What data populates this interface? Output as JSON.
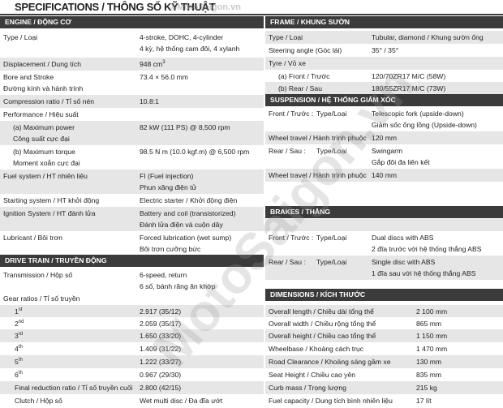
{
  "title": "SPECIFICATIONS / THÔNG SỐ KỸ THUẬT",
  "watermark_top": "©MotoSaigon.vn",
  "watermark": "MotoSaigon.vn",
  "sections": [
    {
      "header": "ENGINE / ĐỘNG CƠ",
      "rows": [
        {
          "label": [
            "Type / Loại"
          ],
          "value": [
            "4-stroke, DOHC, 4-cylinder",
            "4 kỳ, hệ thống cam đôi, 4 xylanh"
          ]
        },
        {
          "label": [
            "Displacement / Dung tích"
          ],
          "value": [
            "948 cm"
          ],
          "value_sup": "3"
        },
        {
          "label": [
            "Bore and Stroke",
            "Đường kính và hành trình"
          ],
          "value": [
            "73.4 × 56.0 mm"
          ]
        },
        {
          "label": [
            "Compression ratio / Tỉ số nén"
          ],
          "value": [
            "10.8:1"
          ]
        },
        {
          "label": [
            "Performance / Hiệu suất"
          ],
          "value": []
        },
        {
          "label": [
            "(a) Maximum power",
            "Công suất cực đại"
          ],
          "value": [
            "82 kW (111 PS) @ 8,500 rpm"
          ]
        },
        {
          "label": [
            "(b) Maximum torque",
            "Moment xoắn cực đại"
          ],
          "value": [
            "98.5 N m (10.0 kgf.m) @ 6,500 rpm"
          ]
        },
        {
          "label": [
            "Fuel system / HT nhiên liệu"
          ],
          "value": [
            "FI (Fuel injection)",
            "Phun xăng điện tử"
          ]
        },
        {
          "label": [
            "Starting system / HT khởi động"
          ],
          "value": [
            "Electric starter / Khởi động điện"
          ]
        },
        {
          "label": [
            "Ignition System / HT đánh lửa"
          ],
          "value": [
            "Battery and coil (transistorized)",
            "Đánh lửa điện và cuộn dây"
          ]
        },
        {
          "label": [
            "Lubricant / Bôi trơn"
          ],
          "value": [
            "Forced lubrication (wet sump)",
            "Bôi trơn cưỡng bức"
          ]
        }
      ]
    },
    {
      "header": "DRIVE TRAIN / TRUYỀN ĐỘNG",
      "rows": [
        {
          "label": [
            "Transmission / Hộp số"
          ],
          "value": [
            "6-speed, return",
            "6 số, bánh răng ăn khớp"
          ]
        },
        {
          "label": [
            "Gear ratios / Tỉ số truyền"
          ],
          "value": []
        },
        {
          "label": [
            "1"
          ],
          "label_sup": "st",
          "value": [
            "2.917 (35/12)"
          ]
        },
        {
          "label": [
            "2"
          ],
          "label_sup": "nd",
          "value": [
            "2.059 (35/17)"
          ]
        },
        {
          "label": [
            "3"
          ],
          "label_sup": "rd",
          "value": [
            "1.650 (33/20)"
          ]
        },
        {
          "label": [
            "4"
          ],
          "label_sup": "th",
          "value": [
            "1.409 (31/22)"
          ]
        },
        {
          "label": [
            "5"
          ],
          "label_sup": "th",
          "value": [
            "1.222 (33/27)"
          ]
        },
        {
          "label": [
            "6"
          ],
          "label_sup": "th",
          "value": [
            "0.967 (29/30)"
          ]
        },
        {
          "label": [
            "Final reduction ratio / Tỉ số truyền cuối"
          ],
          "value": [
            "2.800 (42/15)"
          ]
        },
        {
          "label": [
            "Clutch / Hộp số"
          ],
          "value": [
            "Wet multi disc / Đa đĩa ướt"
          ]
        }
      ]
    },
    {
      "header": "FRAME / KHUNG SƯỜN",
      "rows": [
        {
          "label": [
            "Type / Loại"
          ],
          "value": [
            "Tubular, diamond / Khung sườn ống"
          ]
        },
        {
          "label": [
            "Steering angle (Góc lái)"
          ],
          "value": [
            "35° / 35°"
          ]
        },
        {
          "label": [
            "Tyre / Vỏ xe"
          ],
          "value": []
        },
        {
          "label": [
            "(a) Front / Trước"
          ],
          "value": [
            "120/70ZR17 M/C (58W)"
          ]
        },
        {
          "label": [
            "(b) Rear / Sau"
          ],
          "value": [
            "180/55ZR17 M/C (73W)"
          ]
        }
      ]
    },
    {
      "header": "SUSPENSION / HỆ THỐNG GIẢM XÓC",
      "rows": [
        {
          "label": [
            "Front / Trước :"
          ],
          "sub": [
            "Type/Loại"
          ],
          "value": [
            "Telescopic fork (upside-down)",
            "Giảm sốc ống lồng (Upside-down)"
          ]
        },
        {
          "label": [
            "Wheel travel / Hành trình phuộc"
          ],
          "value": [
            "120 mm"
          ]
        },
        {
          "label": [
            "Rear / Sau :"
          ],
          "sub": [
            "Type/Loại"
          ],
          "value": [
            "Swingarm",
            "Gắp đôi đa liên kết"
          ]
        },
        {
          "label": [
            "Wheel travel / Hành trình phuộc"
          ],
          "value": [
            "140 mm"
          ]
        }
      ]
    },
    {
      "header": "BRAKES / THẮNG",
      "rows": [
        {
          "label": [
            "Front / Trước :"
          ],
          "sub": [
            "Type/Loại"
          ],
          "value": [
            "Dual discs with ABS",
            "2 đĩa trước với hệ thống thắng ABS"
          ]
        },
        {
          "label": [
            "Rear / Sau :"
          ],
          "sub": [
            "Type/Loại"
          ],
          "value": [
            "Single disc with ABS",
            "1 đĩa sau với hệ thống thắng ABS"
          ]
        }
      ]
    },
    {
      "header": "DIMENSIONS / KÍCH THƯỚC",
      "rows": [
        {
          "label": [
            "Overall length / Chiều dài tổng thể"
          ],
          "value": [
            "2 100 mm"
          ]
        },
        {
          "label": [
            "Overall width / Chiều rộng tổng thể"
          ],
          "value": [
            "865 mm"
          ]
        },
        {
          "label": [
            "Overall height / Chiều cao tổng thể"
          ],
          "value": [
            "1 150 mm"
          ]
        },
        {
          "label": [
            "Wheelbase / Khoảng cách trục"
          ],
          "value": [
            "1 470 mm"
          ]
        },
        {
          "label": [
            "Road Clearance / Khoảng sáng gầm xe"
          ],
          "value": [
            "130 mm"
          ]
        },
        {
          "label": [
            "Seat Height / Chiều cao yên"
          ],
          "value": [
            "835 mm"
          ]
        },
        {
          "label": [
            "Curb mass / Trọng lượng"
          ],
          "value": [
            "215 kg"
          ]
        },
        {
          "label": [
            "Fuel capacity / Dung tích bình nhiên liệu"
          ],
          "value": [
            "17 lít"
          ]
        }
      ]
    }
  ]
}
